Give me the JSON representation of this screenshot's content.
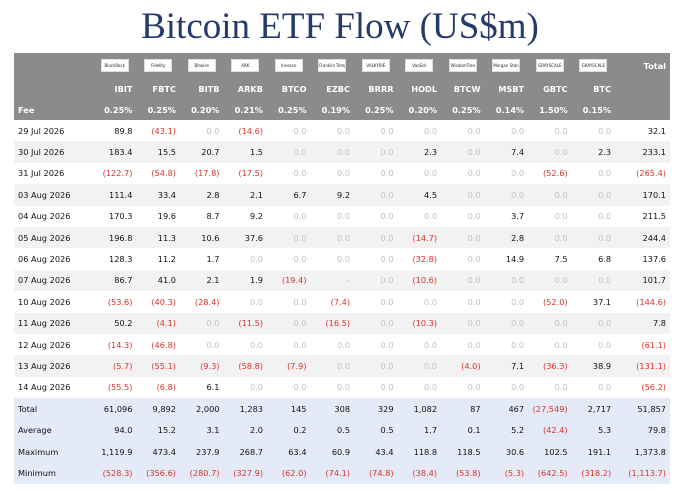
{
  "title": "Bitcoin ETF Flow (US$m)",
  "header": {
    "total_label": "Total",
    "fee_label": "Fee",
    "issuers": [
      "BlackRock",
      "Fidelity",
      "Bitwise",
      "ARK",
      "Invesco",
      "Franklin Templeton",
      "VALKYRIE",
      "VanEck",
      "WisdomTree",
      "Morgan Stanley",
      "GRAYSCALE",
      "GRAYSCALE"
    ],
    "tickers": [
      "IBIT",
      "FBTC",
      "BITB",
      "ARKB",
      "BTCO",
      "EZBC",
      "BRRR",
      "HODL",
      "BTCW",
      "MSBT",
      "GBTC",
      "BTC"
    ],
    "fees": [
      "0.25%",
      "0.25%",
      "0.20%",
      "0.21%",
      "0.25%",
      "0.19%",
      "0.25%",
      "0.20%",
      "0.25%",
      "0.14%",
      "1.50%",
      "0.15%"
    ]
  },
  "rows": [
    {
      "date": "29 Jul 2026",
      "values": [
        "89.8",
        "(43.1)",
        "0.0",
        "(14.6)",
        "0.0",
        "0.0",
        "0.0",
        "0.0",
        "0.0",
        "0.0",
        "0.0",
        "0.0"
      ],
      "total": "32.1"
    },
    {
      "date": "30 Jul 2026",
      "values": [
        "183.4",
        "15.5",
        "20.7",
        "1.5",
        "0.0",
        "0.0",
        "0.0",
        "2.3",
        "0.0",
        "7.4",
        "0.0",
        "2.3"
      ],
      "total": "233.1"
    },
    {
      "date": "31 Jul 2026",
      "values": [
        "(122.7)",
        "(54.8)",
        "(17.8)",
        "(17.5)",
        "0.0",
        "0.0",
        "0.0",
        "0.0",
        "0.0",
        "0.0",
        "(52.6)",
        "0.0"
      ],
      "total": "(265.4)"
    },
    {
      "date": "03 Aug 2026",
      "values": [
        "111.4",
        "33.4",
        "2.8",
        "2.1",
        "6.7",
        "9.2",
        "0.0",
        "4.5",
        "0.0",
        "0.0",
        "0.0",
        "0.0"
      ],
      "total": "170.1"
    },
    {
      "date": "04 Aug 2026",
      "values": [
        "170.3",
        "19.6",
        "8.7",
        "9.2",
        "0.0",
        "0.0",
        "0.0",
        "0.0",
        "0.0",
        "3.7",
        "0.0",
        "0.0"
      ],
      "total": "211.5"
    },
    {
      "date": "05 Aug 2026",
      "values": [
        "196.8",
        "11.3",
        "10.6",
        "37.6",
        "0.0",
        "0.0",
        "0.0",
        "(14.7)",
        "0.0",
        "2.8",
        "0.0",
        "0.0"
      ],
      "total": "244.4"
    },
    {
      "date": "06 Aug 2026",
      "values": [
        "128.3",
        "11.2",
        "1.7",
        "0.0",
        "0.0",
        "0.0",
        "0.0",
        "(32.8)",
        "0.0",
        "14.9",
        "7.5",
        "6.8"
      ],
      "total": "137.6"
    },
    {
      "date": "07 Aug 2026",
      "values": [
        "86.7",
        "41.0",
        "2.1",
        "1.9",
        "(19.4)",
        "-",
        "0.0",
        "(10.6)",
        "0.0",
        "0.0",
        "0.0",
        "0.0"
      ],
      "total": "101.7"
    },
    {
      "date": "10 Aug 2026",
      "values": [
        "(53.6)",
        "(40.3)",
        "(28.4)",
        "0.0",
        "0.0",
        "(7.4)",
        "0.0",
        "0.0",
        "0.0",
        "0.0",
        "(52.0)",
        "37.1"
      ],
      "total": "(144.6)"
    },
    {
      "date": "11 Aug 2026",
      "values": [
        "50.2",
        "(4.1)",
        "0.0",
        "(11.5)",
        "0.0",
        "(16.5)",
        "0.0",
        "(10.3)",
        "0.0",
        "0.0",
        "0.0",
        "0.0"
      ],
      "total": "7.8"
    },
    {
      "date": "12 Aug 2026",
      "values": [
        "(14.3)",
        "(46.8)",
        "0.0",
        "0.0",
        "0.0",
        "0.0",
        "0.0",
        "0.0",
        "0.0",
        "0.0",
        "0.0",
        "0.0"
      ],
      "total": "(61.1)"
    },
    {
      "date": "13 Aug 2026",
      "values": [
        "(5.7)",
        "(55.1)",
        "(9.3)",
        "(58.8)",
        "(7.9)",
        "0.0",
        "0.0",
        "0.0",
        "(4.0)",
        "7.1",
        "(36.3)",
        "38.9"
      ],
      "total": "(131.1)"
    },
    {
      "date": "14 Aug 2026",
      "values": [
        "(55.5)",
        "(6.8)",
        "6.1",
        "0.0",
        "0.0",
        "0.0",
        "0.0",
        "0.0",
        "0.0",
        "0.0",
        "0.0",
        "0.0"
      ],
      "total": "(56.2)"
    }
  ],
  "summary": [
    {
      "label": "Total",
      "values": [
        "61,096",
        "9,892",
        "2,000",
        "1,283",
        "145",
        "308",
        "329",
        "1,082",
        "87",
        "467",
        "(27,549)",
        "2,717"
      ],
      "total": "51,857"
    },
    {
      "label": "Average",
      "values": [
        "94.0",
        "15.2",
        "3.1",
        "2.0",
        "0.2",
        "0.5",
        "0.5",
        "1.7",
        "0.1",
        "5.2",
        "(42.4)",
        "5.3"
      ],
      "total": "79.8"
    },
    {
      "label": "Maximum",
      "values": [
        "1,119.9",
        "473.4",
        "237.9",
        "268.7",
        "63.4",
        "60.9",
        "43.4",
        "118.8",
        "118.5",
        "30.6",
        "102.5",
        "191.1"
      ],
      "total": "1,373.8"
    },
    {
      "label": "Minimum",
      "values": [
        "(528.3)",
        "(356.6)",
        "(280.7)",
        "(327.9)",
        "(62.0)",
        "(74.1)",
        "(74.8)",
        "(38.4)",
        "(53.8)",
        "(5.3)",
        "(642.5)",
        "(318.2)"
      ],
      "total": "(1,113.7)"
    }
  ],
  "colors": {
    "title": "#233a6b",
    "header_bg": "#8b8b8b",
    "negative": "#d9342b",
    "zero": "#c2c2c2",
    "summary_bg": "#e4eaf7"
  }
}
